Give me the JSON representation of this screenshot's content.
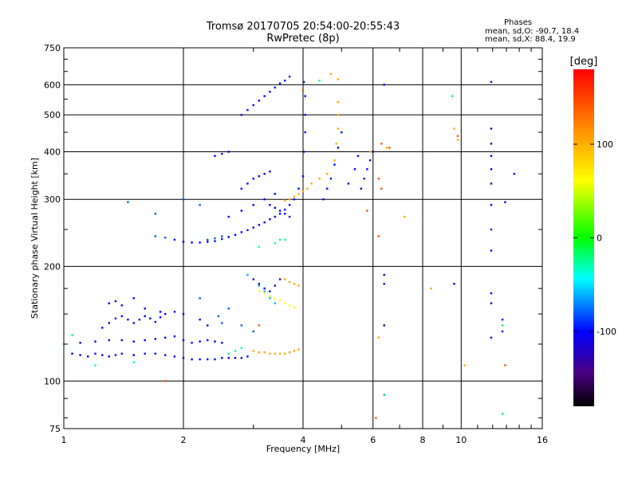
{
  "header": {
    "title": "Tromsø 20170705 20:54:00-20:55:43",
    "subtitle": "RwPretec (8p)"
  },
  "phases": {
    "label": "Phases",
    "line_o": "mean, sd,O: -90.7, 18.4",
    "line_x": "mean, sd,X:  88.4, 19.9"
  },
  "colorbar": {
    "unit": "[deg]",
    "range": [
      -180,
      180
    ],
    "ticks": [
      100,
      0,
      -100
    ],
    "tick_labels": [
      "100",
      "0",
      "-100"
    ],
    "colors": [
      "#ff0000",
      "#ffff00",
      "#00ff00",
      "#00ffff",
      "#0000ff",
      "#000000"
    ]
  },
  "chart_data": {
    "type": "scatter",
    "title": "Tromsø 20170705 20:54:00-20:55:43",
    "subtitle": "RwPretec (8p)",
    "xlabel": "Frequency [MHz]",
    "ylabel": "Stationary phase Virtual Height [km]",
    "x_scale": "log",
    "y_scale": "log",
    "xlim": [
      1,
      16
    ],
    "ylim": [
      75,
      750
    ],
    "x_ticks": [
      1,
      2,
      4,
      6,
      8,
      10,
      16
    ],
    "x_tick_labels": [
      "1",
      "2",
      "4",
      "6",
      "8",
      "10",
      "16"
    ],
    "y_ticks": [
      75,
      100,
      200,
      300,
      400,
      500,
      600,
      750
    ],
    "y_tick_labels": [
      "75",
      "100",
      "200",
      "300",
      "400",
      "500",
      "600",
      "750"
    ],
    "grid": true,
    "series": [
      {
        "phase": -100,
        "points": [
          [
            1.05,
            118
          ],
          [
            1.1,
            117
          ],
          [
            1.15,
            116
          ],
          [
            1.2,
            118
          ],
          [
            1.25,
            117
          ],
          [
            1.3,
            116
          ],
          [
            1.35,
            117
          ],
          [
            1.4,
            118
          ],
          [
            1.5,
            117
          ],
          [
            1.6,
            118
          ],
          [
            1.7,
            118
          ],
          [
            1.8,
            117
          ],
          [
            1.9,
            116
          ],
          [
            2.0,
            115
          ],
          [
            2.1,
            114
          ],
          [
            2.2,
            114
          ],
          [
            2.3,
            114
          ],
          [
            2.4,
            114
          ],
          [
            2.5,
            115
          ],
          [
            2.6,
            115
          ],
          [
            2.7,
            115
          ],
          [
            2.8,
            115
          ],
          [
            2.9,
            116
          ],
          [
            1.1,
            126
          ],
          [
            1.2,
            127
          ],
          [
            1.3,
            128
          ],
          [
            1.4,
            128
          ],
          [
            1.5,
            127
          ],
          [
            1.6,
            128
          ],
          [
            1.7,
            129
          ],
          [
            1.8,
            130
          ],
          [
            1.9,
            131
          ],
          [
            2.0,
            128
          ],
          [
            2.1,
            126
          ],
          [
            2.2,
            127
          ],
          [
            2.3,
            128
          ],
          [
            2.4,
            127
          ],
          [
            2.5,
            126
          ],
          [
            1.25,
            138
          ],
          [
            1.3,
            142
          ],
          [
            1.35,
            146
          ],
          [
            1.4,
            148
          ],
          [
            1.45,
            145
          ],
          [
            1.5,
            142
          ],
          [
            1.55,
            145
          ],
          [
            1.6,
            148
          ],
          [
            1.65,
            146
          ],
          [
            1.7,
            143
          ],
          [
            1.75,
            147
          ],
          [
            1.8,
            150
          ],
          [
            1.9,
            152
          ],
          [
            2.0,
            150
          ],
          [
            2.2,
            145
          ],
          [
            2.3,
            140
          ],
          [
            1.3,
            160
          ],
          [
            1.35,
            162
          ],
          [
            1.4,
            158
          ],
          [
            1.6,
            155
          ],
          [
            1.75,
            152
          ],
          [
            1.5,
            165
          ],
          [
            1.9,
            235
          ],
          [
            2.0,
            232
          ],
          [
            2.1,
            231
          ],
          [
            2.2,
            231
          ],
          [
            2.3,
            232
          ],
          [
            2.4,
            233
          ],
          [
            2.5,
            236
          ],
          [
            2.6,
            239
          ],
          [
            2.7,
            242
          ],
          [
            2.8,
            246
          ],
          [
            2.9,
            249
          ],
          [
            3.0,
            253
          ],
          [
            3.1,
            257
          ],
          [
            3.2,
            261
          ],
          [
            3.3,
            266
          ],
          [
            3.4,
            270
          ],
          [
            3.5,
            275
          ],
          [
            3.6,
            282
          ],
          [
            3.7,
            290
          ],
          [
            3.8,
            300
          ],
          [
            3.9,
            320
          ],
          [
            4.0,
            345
          ],
          [
            4.02,
            400
          ],
          [
            4.05,
            450
          ],
          [
            4.05,
            500
          ],
          [
            4.05,
            560
          ],
          [
            4.02,
            610
          ],
          [
            2.6,
            270
          ],
          [
            2.8,
            280
          ],
          [
            3.0,
            290
          ],
          [
            3.2,
            300
          ],
          [
            3.4,
            310
          ],
          [
            2.8,
            320
          ],
          [
            2.9,
            330
          ],
          [
            3.0,
            340
          ],
          [
            3.1,
            345
          ],
          [
            3.2,
            350
          ],
          [
            3.3,
            355
          ],
          [
            2.4,
            390
          ],
          [
            2.5,
            395
          ],
          [
            2.6,
            400
          ],
          [
            2.8,
            500
          ],
          [
            2.9,
            515
          ],
          [
            3.0,
            530
          ],
          [
            3.1,
            545
          ],
          [
            3.2,
            560
          ],
          [
            3.3,
            575
          ],
          [
            3.4,
            590
          ],
          [
            3.5,
            605
          ],
          [
            3.6,
            615
          ],
          [
            3.7,
            630
          ],
          [
            4.5,
            300
          ],
          [
            4.6,
            320
          ],
          [
            4.7,
            340
          ],
          [
            4.8,
            370
          ],
          [
            4.9,
            410
          ],
          [
            5.0,
            450
          ],
          [
            5.2,
            330
          ],
          [
            5.4,
            360
          ],
          [
            5.5,
            390
          ],
          [
            6.4,
            600
          ],
          [
            6.4,
            190
          ],
          [
            6.4,
            180
          ],
          [
            6.4,
            140
          ],
          [
            6.4,
            92
          ],
          [
            9.6,
            180
          ],
          [
            11.9,
            610
          ],
          [
            11.9,
            460
          ],
          [
            11.9,
            420
          ],
          [
            11.9,
            390
          ],
          [
            11.9,
            360
          ],
          [
            11.9,
            330
          ],
          [
            11.9,
            290
          ],
          [
            11.9,
            250
          ],
          [
            11.9,
            220
          ],
          [
            11.9,
            170
          ],
          [
            11.9,
            160
          ],
          [
            11.9,
            130
          ],
          [
            12.7,
            145
          ],
          [
            12.7,
            135
          ],
          [
            12.9,
            295
          ],
          [
            13.6,
            350
          ]
        ]
      },
      {
        "phase": -80,
        "points": [
          [
            1.7,
            240
          ],
          [
            1.8,
            238
          ],
          [
            2.3,
            235
          ],
          [
            2.4,
            237
          ],
          [
            2.5,
            240
          ],
          [
            1.45,
            295
          ],
          [
            2.0,
            300
          ],
          [
            2.2,
            290
          ],
          [
            1.7,
            275
          ],
          [
            2.45,
            148
          ],
          [
            2.5,
            142
          ],
          [
            2.2,
            165
          ],
          [
            2.6,
            155
          ],
          [
            2.8,
            140
          ],
          [
            3.0,
            135
          ]
        ]
      },
      {
        "phase": -60,
        "points": [
          [
            3.1,
            178
          ],
          [
            3.2,
            172
          ],
          [
            3.3,
            165
          ],
          [
            3.4,
            160
          ],
          [
            2.9,
            190
          ]
        ]
      },
      {
        "phase": -110,
        "points": [
          [
            3.0,
            185
          ],
          [
            3.1,
            180
          ],
          [
            3.2,
            175
          ],
          [
            3.3,
            172
          ],
          [
            3.4,
            178
          ],
          [
            3.5,
            185
          ],
          [
            3.6,
            275
          ],
          [
            3.5,
            280
          ],
          [
            3.4,
            285
          ],
          [
            3.3,
            290
          ],
          [
            3.7,
            270
          ],
          [
            5.8,
            360
          ],
          [
            5.9,
            380
          ],
          [
            6.0,
            400
          ],
          [
            5.7,
            340
          ],
          [
            5.6,
            320
          ]
        ]
      },
      {
        "phase": -30,
        "points": [
          [
            1.0,
            125
          ],
          [
            1.05,
            132
          ],
          [
            1.2,
            110
          ],
          [
            1.5,
            112
          ],
          [
            2.6,
            118
          ],
          [
            2.7,
            120
          ],
          [
            2.8,
            122
          ],
          [
            3.1,
            225
          ],
          [
            3.4,
            230
          ],
          [
            3.6,
            235
          ]
        ]
      },
      {
        "phase": 60,
        "points": [
          [
            3.1,
            172
          ],
          [
            3.2,
            170
          ],
          [
            3.3,
            167
          ],
          [
            3.4,
            165
          ],
          [
            3.5,
            163
          ],
          [
            3.6,
            160
          ],
          [
            3.7,
            158
          ],
          [
            3.8,
            156
          ]
        ]
      },
      {
        "phase": 100,
        "points": [
          [
            3.0,
            120
          ],
          [
            3.1,
            119
          ],
          [
            3.2,
            119
          ],
          [
            3.3,
            118
          ],
          [
            3.4,
            118
          ],
          [
            3.5,
            118
          ],
          [
            3.6,
            118
          ],
          [
            3.7,
            119
          ],
          [
            3.8,
            120
          ],
          [
            3.9,
            121
          ],
          [
            3.6,
            185
          ],
          [
            3.7,
            182
          ],
          [
            3.8,
            180
          ],
          [
            3.9,
            178
          ],
          [
            3.6,
            298
          ],
          [
            3.7,
            300
          ],
          [
            3.8,
            305
          ],
          [
            3.9,
            310
          ],
          [
            4.0,
            315
          ],
          [
            4.1,
            320
          ],
          [
            4.2,
            330
          ],
          [
            4.4,
            340
          ],
          [
            4.6,
            350
          ],
          [
            4.8,
            380
          ],
          [
            4.85,
            420
          ],
          [
            4.9,
            460
          ],
          [
            4.9,
            500
          ],
          [
            4.9,
            540
          ],
          [
            4.7,
            640
          ],
          [
            4.9,
            620
          ],
          [
            5.9,
            400
          ],
          [
            6.5,
            410
          ],
          [
            7.2,
            270
          ],
          [
            9.8,
            430
          ],
          [
            9.6,
            460
          ],
          [
            6.2,
            130
          ],
          [
            10.2,
            110
          ],
          [
            8.4,
            175
          ]
        ]
      },
      {
        "phase": 140,
        "points": [
          [
            1.8,
            100
          ],
          [
            3.1,
            140
          ],
          [
            4.0,
            580
          ],
          [
            6.3,
            420
          ],
          [
            6.2,
            340
          ],
          [
            6.3,
            320
          ],
          [
            6.6,
            410
          ],
          [
            9.8,
            440
          ],
          [
            12.9,
            110
          ],
          [
            6.1,
            80
          ],
          [
            5.8,
            280
          ],
          [
            6.2,
            240
          ]
        ]
      },
      {
        "phase": -20,
        "points": [
          [
            4.4,
            615
          ],
          [
            3.5,
            235
          ],
          [
            9.5,
            560
          ],
          [
            12.7,
            82
          ],
          [
            6.4,
            92
          ],
          [
            12.7,
            140
          ]
        ]
      }
    ]
  }
}
